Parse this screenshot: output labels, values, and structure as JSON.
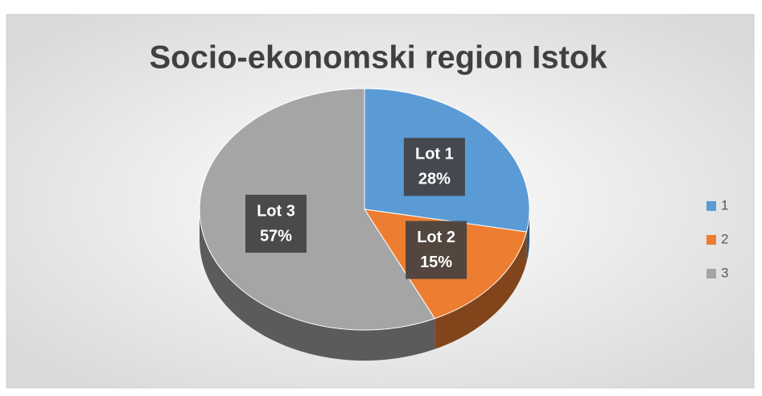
{
  "chart_data": {
    "type": "pie",
    "title": "Socio-ekonomski region Istok",
    "categories": [
      "Lot 1",
      "Lot 2",
      "Lot 3"
    ],
    "values": [
      28,
      15,
      57
    ],
    "value_labels": [
      "28%",
      "15%",
      "57%"
    ],
    "colors": [
      "#5b9bd5",
      "#ed7d31",
      "#a5a5a5"
    ],
    "legend_labels": [
      "1",
      "2",
      "3"
    ],
    "legend": "right"
  }
}
